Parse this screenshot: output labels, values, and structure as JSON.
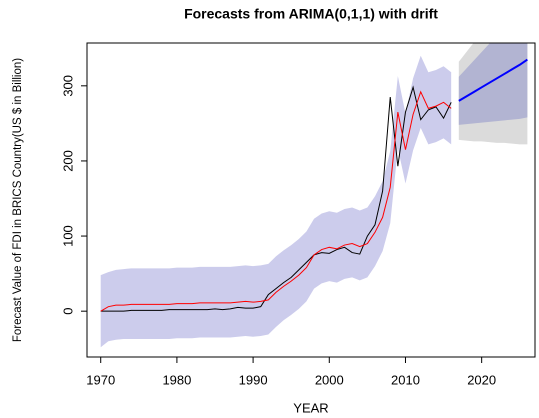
{
  "chart_data": {
    "type": "forecast",
    "title": "Forecasts from ARIMA(0,1,1) with drift",
    "xlabel": "YEAR",
    "ylabel": "Forecast Value of FDI in BRICS Country(US $ in Billion)",
    "xlim": [
      1968.2,
      2027
    ],
    "ylim": [
      -61,
      357
    ],
    "xticks": [
      1970,
      1980,
      1990,
      2000,
      2010,
      2020
    ],
    "yticks": [
      0,
      100,
      200,
      300
    ],
    "x": [
      1970,
      1971,
      1972,
      1973,
      1974,
      1975,
      1976,
      1977,
      1978,
      1979,
      1980,
      1981,
      1982,
      1983,
      1984,
      1985,
      1986,
      1987,
      1988,
      1989,
      1990,
      1991,
      1992,
      1993,
      1994,
      1995,
      1996,
      1997,
      1998,
      1999,
      2000,
      2001,
      2002,
      2003,
      2004,
      2005,
      2006,
      2007,
      2008,
      2009,
      2010,
      2011,
      2012,
      2013,
      2014,
      2015,
      2016
    ],
    "band": {
      "color": "#ccccec",
      "lower": [
        -48,
        -40,
        -38,
        -37,
        -37,
        -37,
        -37,
        -37,
        -37,
        -37,
        -36,
        -36,
        -36,
        -35,
        -35,
        -35,
        -35,
        -35,
        -34,
        -33,
        -34,
        -33,
        -31,
        -21,
        -12,
        -5,
        3,
        13,
        30,
        37,
        40,
        38,
        43,
        45,
        41,
        45,
        60,
        80,
        117,
        217,
        170,
        214,
        244,
        222,
        225,
        230,
        222
      ],
      "upper": [
        48,
        52,
        55,
        56,
        57,
        57,
        57,
        57,
        57,
        57,
        58,
        58,
        58,
        59,
        59,
        59,
        59,
        59,
        60,
        61,
        60,
        61,
        63,
        73,
        81,
        88,
        96,
        106,
        123,
        130,
        133,
        131,
        136,
        138,
        134,
        138,
        153,
        173,
        213,
        313,
        263,
        310,
        340,
        318,
        321,
        326,
        318
      ]
    },
    "series": [
      {
        "color": "#000000",
        "values": [
          0,
          0,
          0,
          0,
          1,
          1,
          1,
          1,
          1,
          2,
          2,
          2,
          2,
          2,
          2,
          3,
          2,
          3,
          5,
          4,
          4,
          6,
          22,
          30,
          38,
          45,
          55,
          65,
          75,
          78,
          77,
          82,
          85,
          78,
          76,
          100,
          115,
          160,
          285,
          193,
          265,
          298,
          255,
          268,
          272,
          257,
          278
        ]
      },
      {
        "color": "#ff0000",
        "values": [
          0,
          6,
          8,
          8,
          9,
          9,
          9,
          9,
          9,
          9,
          10,
          10,
          10,
          11,
          11,
          11,
          11,
          11,
          12,
          13,
          12,
          13,
          15,
          25,
          33,
          40,
          48,
          58,
          75,
          82,
          85,
          83,
          88,
          90,
          86,
          90,
          105,
          125,
          165,
          265,
          215,
          262,
          292,
          270,
          273,
          278,
          270
        ]
      }
    ],
    "forecast": {
      "x": [
        2017,
        2018,
        2019,
        2020,
        2021,
        2022,
        2023,
        2024,
        2025,
        2026
      ],
      "intervals": [
        {
          "color": "#dbdbdb",
          "lower": [
            228,
            227,
            226,
            226,
            225,
            224,
            224,
            223,
            222,
            222
          ],
          "upper": [
            332,
            345,
            358,
            371,
            384,
            397,
            410,
            422,
            435,
            448
          ]
        },
        {
          "color": "#b2b4d2",
          "lower": [
            248,
            249,
            250,
            251,
            252,
            253,
            254,
            255,
            256,
            258
          ],
          "upper": [
            312,
            323,
            334,
            345,
            356,
            367,
            378,
            389,
            400,
            412
          ]
        }
      ],
      "mean": {
        "color": "#0000ff",
        "values": [
          280,
          286,
          292,
          298,
          304,
          310,
          316,
          322,
          328,
          335
        ]
      }
    }
  }
}
